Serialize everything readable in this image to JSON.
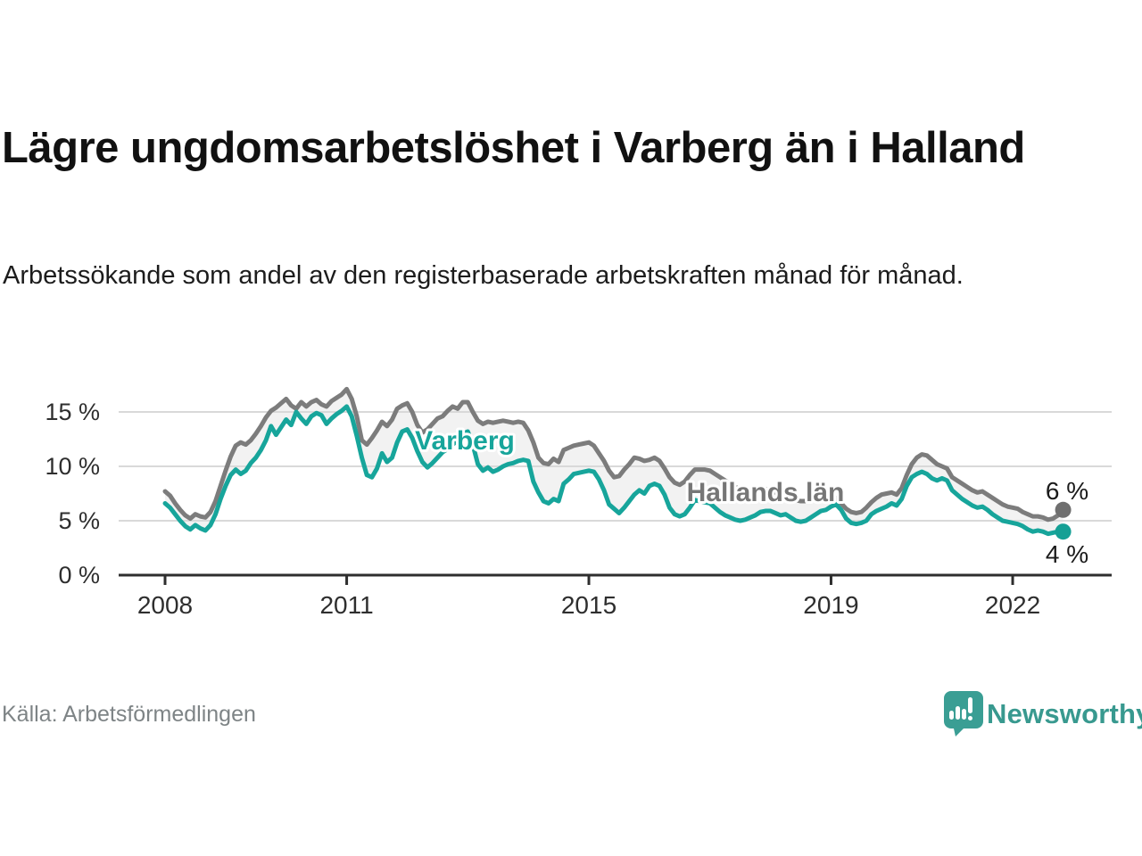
{
  "header": {
    "title": "Lägre ungdomsarbetslöshet i Varberg än i Halland",
    "subtitle": "Arbetssökande som andel av den registerbaserade arbetskraften månad för månad."
  },
  "footer": {
    "source": "Källa: Arbetsförmedlingen",
    "brand": "Newsworthy",
    "brand_icon": "newsworthy-speech-bubble-bar-chart",
    "brand_color": "#3a9e94"
  },
  "chart_data": {
    "type": "line",
    "unit": "%",
    "frequency": "monthly",
    "x_start": "2008-01",
    "x_end": "2022-11",
    "x_ticks": [
      "2008",
      "2011",
      "2015",
      "2019",
      "2022"
    ],
    "y_tick_labels": [
      "0 %",
      "5 %",
      "10 %",
      "15 %"
    ],
    "y_tick_values": [
      0,
      5,
      10,
      15
    ],
    "ylim": [
      0,
      18
    ],
    "grid": true,
    "band_fill": "rgba(0,0,0,0.05)",
    "annotations": [
      {
        "text": "Varberg",
        "color": "#17a59b"
      },
      {
        "text": "Hallands län",
        "color": "#767676"
      }
    ],
    "series": [
      {
        "name": "Hallands län",
        "color": "#7c7c7c",
        "dot_color": "#6f6f6f",
        "end_label": "6 %",
        "end_value": 6,
        "values": [
          7.7,
          7.3,
          6.6,
          6.0,
          5.5,
          5.2,
          5.6,
          5.4,
          5.3,
          5.8,
          6.8,
          8.2,
          9.6,
          10.9,
          11.9,
          12.2,
          12.0,
          12.4,
          13.0,
          13.7,
          14.5,
          15.1,
          15.4,
          15.8,
          16.2,
          15.6,
          15.3,
          15.9,
          15.5,
          15.9,
          16.1,
          15.7,
          15.5,
          16.0,
          16.3,
          16.6,
          17.1,
          16.2,
          14.6,
          12.4,
          12.0,
          12.6,
          13.3,
          14.1,
          13.7,
          14.3,
          15.3,
          15.6,
          15.8,
          15.0,
          13.8,
          13.1,
          13.4,
          13.9,
          14.4,
          14.6,
          15.1,
          15.5,
          15.3,
          15.9,
          15.9,
          15.0,
          14.2,
          13.9,
          14.1,
          14.0,
          14.1,
          14.2,
          14.1,
          14.0,
          14.1,
          14.0,
          13.3,
          12.2,
          10.8,
          10.3,
          10.2,
          10.7,
          10.4,
          11.5,
          11.7,
          11.9,
          12.0,
          12.1,
          12.2,
          11.9,
          11.2,
          10.5,
          9.6,
          9.0,
          9.1,
          9.7,
          10.2,
          10.8,
          10.7,
          10.5,
          10.6,
          10.8,
          10.5,
          9.8,
          9.0,
          8.5,
          8.3,
          8.6,
          9.2,
          9.7,
          9.7,
          9.7,
          9.6,
          9.3,
          9.0,
          8.7,
          8.4,
          8.1,
          7.9,
          7.8,
          7.8,
          7.9,
          8.0,
          7.9,
          7.8,
          7.6,
          7.4,
          7.2,
          7.0,
          6.9,
          6.8,
          6.8,
          7.0,
          7.1,
          7.2,
          7.1,
          7.0,
          7.1,
          6.6,
          6.1,
          5.8,
          5.7,
          5.8,
          6.2,
          6.7,
          7.1,
          7.4,
          7.5,
          7.6,
          7.4,
          8.0,
          9.2,
          10.2,
          10.8,
          11.1,
          11.0,
          10.6,
          10.2,
          10.0,
          9.8,
          9.0,
          8.7,
          8.4,
          8.1,
          7.8,
          7.6,
          7.7,
          7.4,
          7.1,
          6.8,
          6.5,
          6.3,
          6.2,
          6.1,
          5.8,
          5.6,
          5.4,
          5.4,
          5.3,
          5.1,
          5.2,
          5.5,
          6.0
        ]
      },
      {
        "name": "Varberg",
        "color": "#17a59b",
        "dot_color": "#15a095",
        "end_label": "4 %",
        "end_value": 4,
        "values": [
          6.6,
          6.2,
          5.6,
          5.0,
          4.5,
          4.2,
          4.6,
          4.3,
          4.1,
          4.6,
          5.6,
          7.0,
          8.2,
          9.2,
          9.7,
          9.3,
          9.6,
          10.3,
          10.8,
          11.5,
          12.4,
          13.7,
          12.9,
          13.6,
          14.3,
          13.8,
          15.0,
          14.4,
          13.9,
          14.6,
          14.9,
          14.7,
          13.9,
          14.4,
          14.8,
          15.1,
          15.5,
          14.6,
          12.8,
          10.8,
          9.2,
          9.0,
          9.8,
          11.2,
          10.4,
          10.8,
          12.2,
          13.2,
          13.4,
          12.6,
          11.4,
          10.4,
          9.9,
          10.3,
          10.8,
          11.3,
          11.6,
          12.0,
          12.4,
          13.0,
          13.2,
          12.0,
          10.2,
          9.6,
          9.9,
          9.5,
          9.7,
          10.0,
          10.2,
          10.3,
          10.5,
          10.6,
          10.5,
          8.6,
          7.6,
          6.8,
          6.6,
          7.0,
          6.8,
          8.4,
          8.8,
          9.3,
          9.4,
          9.5,
          9.6,
          9.5,
          8.8,
          7.8,
          6.5,
          6.1,
          5.7,
          6.2,
          6.8,
          7.4,
          7.8,
          7.5,
          8.2,
          8.4,
          8.2,
          7.4,
          6.2,
          5.6,
          5.4,
          5.6,
          6.2,
          6.9,
          6.8,
          6.7,
          6.6,
          6.2,
          5.8,
          5.5,
          5.3,
          5.1,
          5.0,
          5.1,
          5.3,
          5.5,
          5.8,
          5.9,
          5.9,
          5.7,
          5.5,
          5.6,
          5.3,
          5.0,
          4.9,
          5.0,
          5.3,
          5.6,
          5.9,
          6.0,
          6.3,
          6.5,
          6.0,
          5.2,
          4.8,
          4.7,
          4.8,
          5.0,
          5.6,
          5.9,
          6.1,
          6.3,
          6.6,
          6.4,
          7.0,
          8.2,
          9.0,
          9.3,
          9.5,
          9.3,
          8.9,
          8.7,
          8.9,
          8.7,
          7.8,
          7.4,
          7.0,
          6.7,
          6.4,
          6.2,
          6.3,
          6.0,
          5.6,
          5.3,
          5.0,
          4.9,
          4.8,
          4.7,
          4.5,
          4.2,
          4.0,
          4.1,
          4.0,
          3.8,
          3.9,
          4.0,
          4.0
        ]
      }
    ]
  }
}
